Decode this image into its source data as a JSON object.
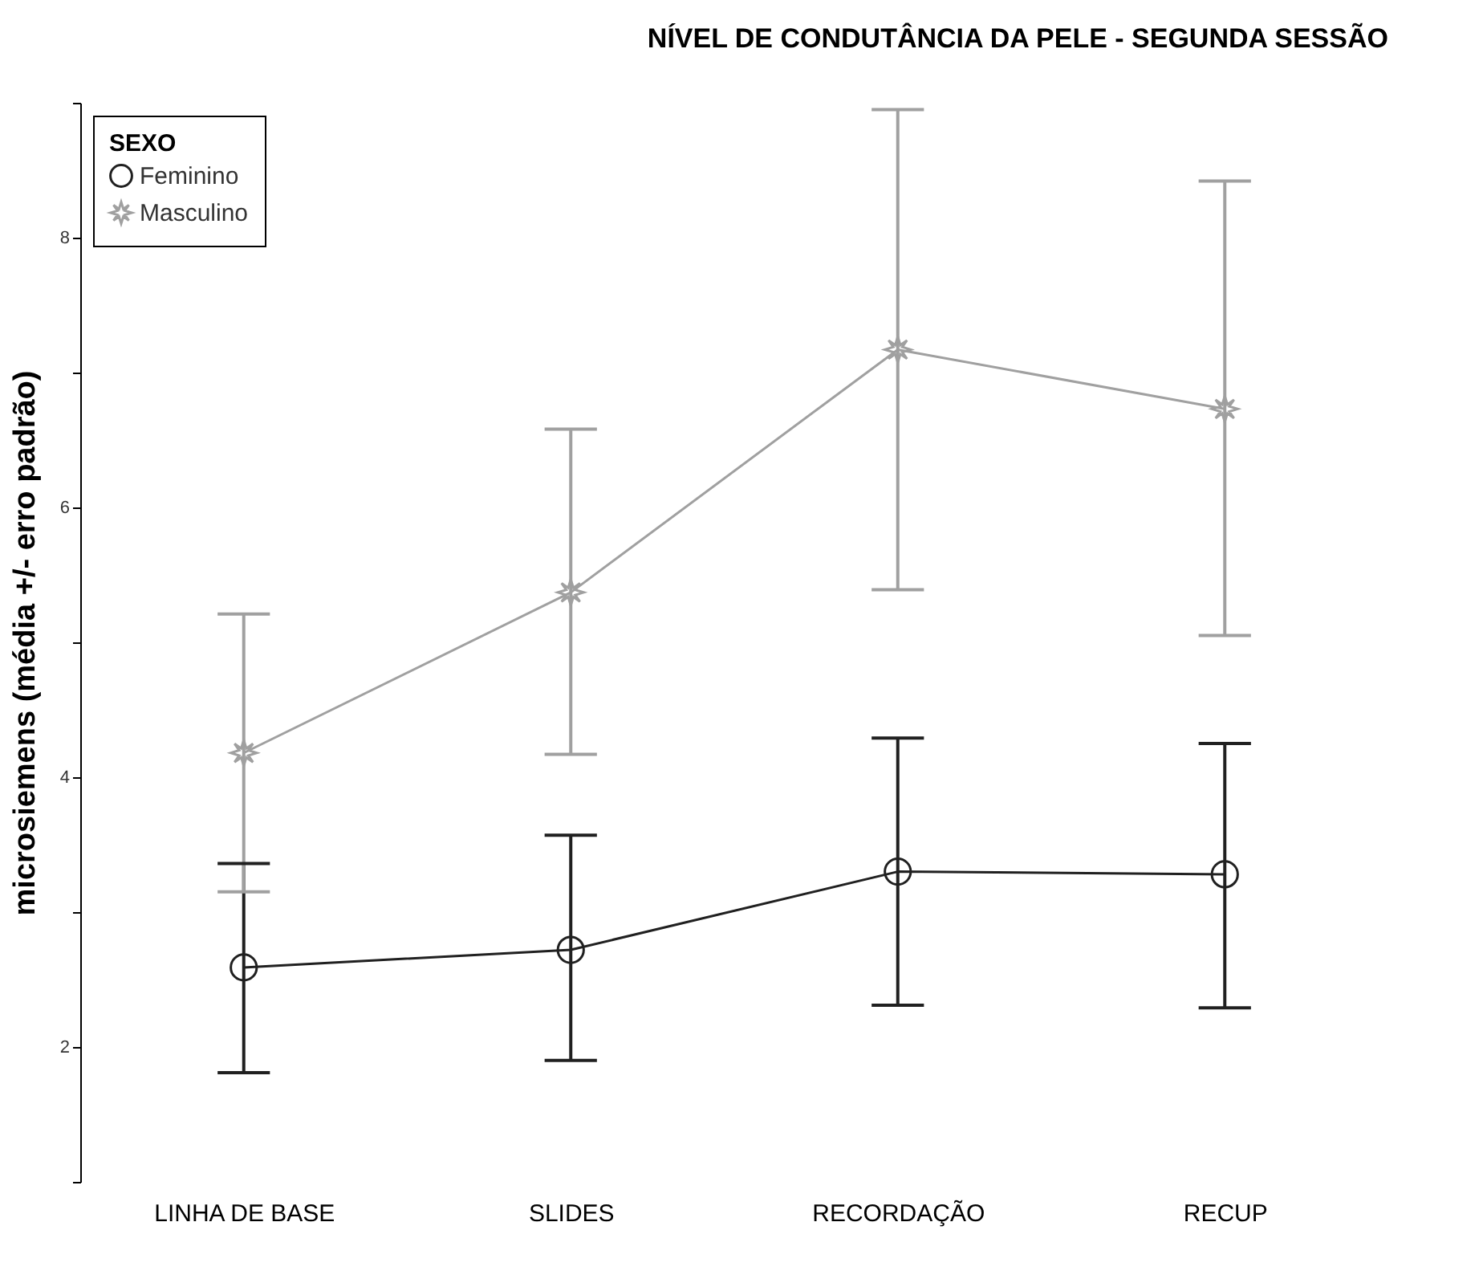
{
  "chart_data": {
    "type": "line",
    "title": "NÍVEL DE CONDUTÂNCIA DA PELE - SEGUNDA SESSÃO",
    "ylabel": "microsiemens (média +/- erro padrão)",
    "legend_title": "SEXO",
    "legend": "top left",
    "grid": false,
    "categories": [
      "LINHA DE BASE",
      "SLIDES",
      "RECORDAÇÃO",
      "RECUP"
    ],
    "ylim": [
      1,
      9
    ],
    "yticks": [
      {
        "value": 1,
        "label": null
      },
      2,
      {
        "value": 3,
        "label": null
      },
      4,
      {
        "value": 5,
        "label": null
      },
      6,
      {
        "value": 7,
        "label": null
      },
      8,
      {
        "value": 9,
        "label": null
      }
    ],
    "series": [
      {
        "name": "Feminino",
        "color": "#202020",
        "marker": "circle",
        "values": [
          2.59,
          2.72,
          3.3,
          3.28
        ],
        "errors": [
          [
            1.81,
            3.36
          ],
          [
            1.9,
            3.57
          ],
          [
            2.31,
            4.29
          ],
          [
            2.29,
            4.25
          ]
        ]
      },
      {
        "name": "Masculino",
        "color": "#a0a0a0",
        "marker": "star",
        "values": [
          4.18,
          5.37,
          7.17,
          6.73
        ],
        "errors": [
          [
            3.15,
            5.21
          ],
          [
            4.17,
            6.58
          ],
          [
            5.39,
            8.95
          ],
          [
            5.05,
            8.42
          ]
        ]
      }
    ]
  }
}
